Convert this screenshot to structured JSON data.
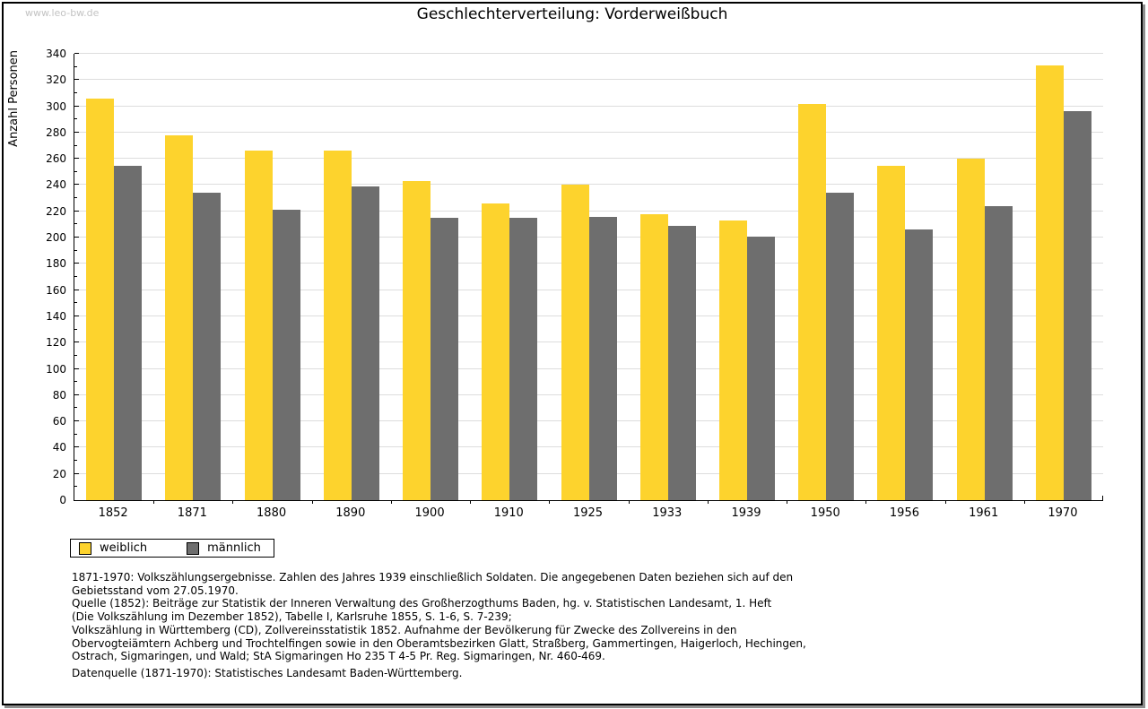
{
  "watermark": "www.leo-bw.de",
  "title": "Geschlechterverteilung: Vorderweißbuch",
  "chart_data": {
    "type": "bar",
    "title": "Geschlechterverteilung: Vorderweißbuch",
    "xlabel": "",
    "ylabel": "Anzahl Personen",
    "categories": [
      "1852",
      "1871",
      "1880",
      "1890",
      "1900",
      "1910",
      "1925",
      "1933",
      "1939",
      "1950",
      "1956",
      "1961",
      "1970"
    ],
    "series": [
      {
        "name": "weiblich",
        "color": "#FDD32D",
        "values": [
          306,
          278,
          266,
          266,
          243,
          226,
          240,
          218,
          213,
          302,
          255,
          260,
          331
        ]
      },
      {
        "name": "männlich",
        "color": "#6E6E6E",
        "values": [
          255,
          234,
          221,
          239,
          215,
          215,
          216,
          209,
          201,
          234,
          206,
          224,
          296
        ]
      }
    ],
    "ylim": [
      0,
      340
    ],
    "ytick_step": 20,
    "yminor_step": 10,
    "grid": true,
    "legend_position": "bottom-left"
  },
  "legend": {
    "items": [
      {
        "label": "weiblich",
        "color": "#FDD32D"
      },
      {
        "label": "männlich",
        "color": "#6E6E6E"
      }
    ]
  },
  "colors": {
    "weiblich": "#FDD32D",
    "maennlich": "#6E6E6E",
    "gridline": "#DDDDDD",
    "axis": "#000000",
    "watermark": "#C3C3C3",
    "background": "#FFFFFF"
  },
  "notes": {
    "lines": [
      "1871-1970: Volkszählungsergebnisse. Zahlen des Jahres 1939 einschließlich Soldaten. Die angegebenen Daten beziehen sich auf den",
      "Gebietsstand vom 27.05.1970.",
      "Quelle (1852): Beiträge zur Statistik der Inneren Verwaltung des Großherzogthums Baden, hg. v. Statistischen Landesamt, 1. Heft",
      "(Die Volkszählung im Dezember 1852), Tabelle I, Karlsruhe 1855, S. 1-6, S. 7-239;",
      "Volkszählung in Württemberg (CD), Zollvereinsstatistik 1852. Aufnahme der Bevölkerung für Zwecke des Zollvereins in den",
      "Obervogteiämtern Achberg und Trochtelfingen sowie in den Oberamtsbezirken Glatt, Straßberg, Gammertingen, Haigerloch, Hechingen,",
      "Ostrach, Sigmaringen, und Wald; StA Sigmaringen Ho 235 T 4-5 Pr. Reg. Sigmaringen, Nr. 460-469."
    ],
    "datasource": "Datenquelle (1871-1970): Statistisches Landesamt Baden-Württemberg."
  }
}
